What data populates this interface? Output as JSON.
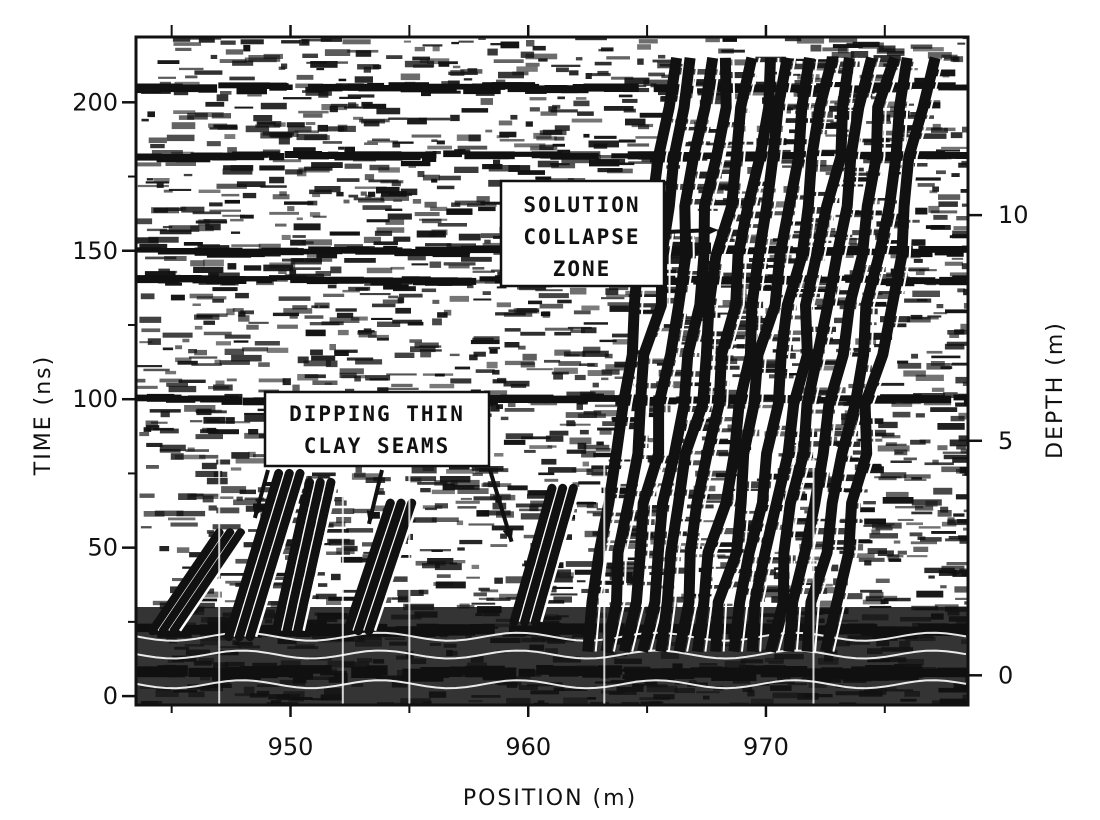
{
  "chart_data": {
    "type": "heatmap",
    "title": "",
    "xlabel": "POSITION (m)",
    "ylabel": "TIME (ns)",
    "y2label": "DEPTH (m)",
    "xlim": [
      943.5,
      978.5
    ],
    "ylim": [
      -3,
      222
    ],
    "x_ticks": [
      950,
      960,
      970
    ],
    "x_minor_ticks": [
      945,
      955,
      965,
      975
    ],
    "y_ticks": [
      0,
      50,
      100,
      150,
      200
    ],
    "y_minor_ticks": [
      25,
      75,
      125,
      175
    ],
    "y2_ticks": [
      {
        "depth": 0,
        "time": 7
      },
      {
        "depth": 5,
        "time": 86
      },
      {
        "depth": 10,
        "time": 162
      }
    ],
    "strong_reflector_times_ns": [
      8,
      22,
      100,
      140,
      150,
      182,
      205
    ],
    "dipping_seams": [
      {
        "x_start": 944.2,
        "t_start": 22,
        "x_end": 947,
        "t_end": 55
      },
      {
        "x_start": 947.4,
        "t_start": 20,
        "x_end": 949.5,
        "t_end": 75
      },
      {
        "x_start": 949.4,
        "t_start": 22,
        "x_end": 950.8,
        "t_end": 72
      },
      {
        "x_start": 952.4,
        "t_start": 22,
        "x_end": 954.2,
        "t_end": 65
      },
      {
        "x_start": 959.4,
        "t_start": 25,
        "x_end": 961,
        "t_end": 70
      }
    ],
    "collapse_zone": {
      "x_base": [
        962.5,
        972.5
      ],
      "t_base": 15,
      "x_top": [
        966,
        977
      ],
      "t_top": 215
    },
    "annotations": [
      {
        "lines": [
          "SOLUTION",
          "COLLAPSE",
          "ZONE"
        ],
        "arrow_to": {
          "x": 968,
          "t": 157
        }
      },
      {
        "lines": [
          "DIPPING THIN",
          "CLAY SEAMS"
        ],
        "arrows_to": [
          {
            "x": 948.5,
            "t": 60
          },
          {
            "x": 953.3,
            "t": 58
          },
          {
            "x": 959.3,
            "t": 52
          }
        ]
      }
    ],
    "grid": false,
    "colors": {
      "ink": "#111111",
      "paper": "#ffffff"
    }
  }
}
